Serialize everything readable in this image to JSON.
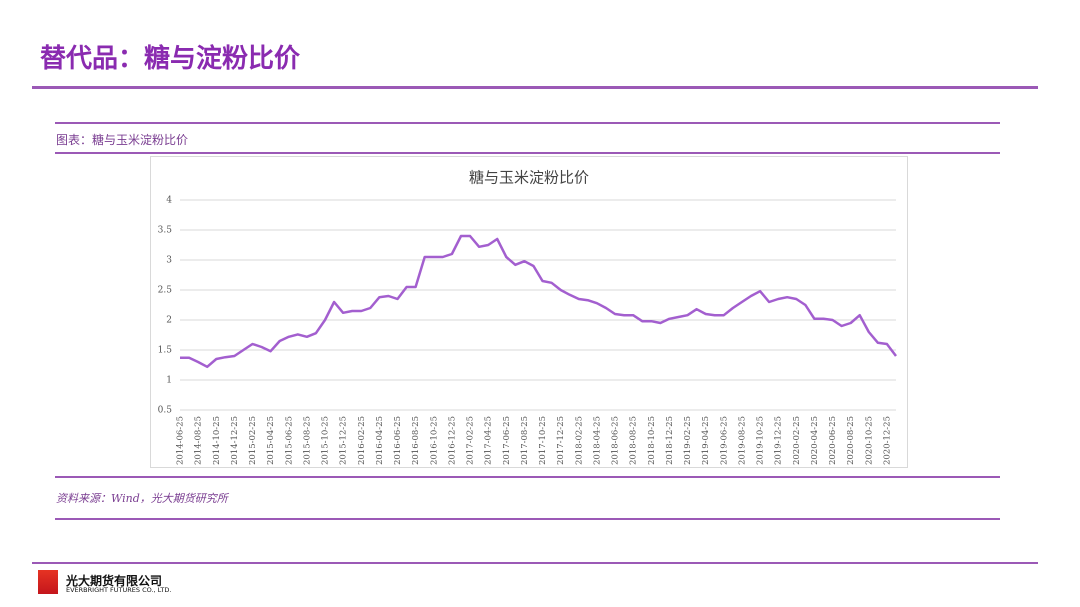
{
  "header": {
    "title": "替代品：糖与淀粉比价"
  },
  "caption": "图表：糖与玉米淀粉比价",
  "source": "资料来源：Wind，光大期货研究所",
  "footer": {
    "company": "光大期货有限公司",
    "company_en": "EVERBRIGHT FUTURES CO., LTD."
  },
  "chart_data": {
    "type": "line",
    "title": "糖与玉米淀粉比价",
    "categories": [
      "2014-06-25",
      null,
      "2014-08-25",
      null,
      "2014-10-25",
      null,
      "2014-12-25",
      null,
      "2015-02-25",
      null,
      "2015-04-25",
      null,
      "2015-06-25",
      null,
      "2015-08-25",
      null,
      "2015-10-25",
      null,
      "2015-12-25",
      null,
      "2016-02-25",
      null,
      "2016-04-25",
      null,
      "2016-06-25",
      null,
      "2016-08-25",
      null,
      "2016-10-25",
      null,
      "2016-12-25",
      null,
      "2017-02-25",
      null,
      "2017-04-25",
      null,
      "2017-06-25",
      null,
      "2017-08-25",
      null,
      "2017-10-25",
      null,
      "2017-12-25",
      null,
      "2018-02-25",
      null,
      "2018-04-25",
      null,
      "2018-06-25",
      null,
      "2018-08-25",
      null,
      "2018-10-25",
      null,
      "2018-12-25",
      null,
      "2019-02-25",
      null,
      "2019-04-25",
      null,
      "2019-06-25",
      null,
      "2019-08-25",
      null,
      "2019-10-25",
      null,
      "2019-12-25",
      null,
      "2020-02-25",
      null,
      "2020-04-25",
      null,
      "2020-06-25",
      null,
      "2020-08-25",
      null,
      "2020-10-25",
      null,
      "2020-12-25",
      null
    ],
    "series": [
      {
        "name": "糖与玉米淀粉比价",
        "color": "#a35fcf",
        "values": [
          1.37,
          1.37,
          1.3,
          1.22,
          1.35,
          1.38,
          1.4,
          1.5,
          1.6,
          1.55,
          1.48,
          1.65,
          1.72,
          1.76,
          1.72,
          1.78,
          2.0,
          2.3,
          2.12,
          2.15,
          2.15,
          2.2,
          2.38,
          2.4,
          2.35,
          2.55,
          2.55,
          3.05,
          3.05,
          3.05,
          3.1,
          3.4,
          3.4,
          3.22,
          3.25,
          3.35,
          3.05,
          2.92,
          2.98,
          2.9,
          2.65,
          2.62,
          2.5,
          2.42,
          2.35,
          2.33,
          2.28,
          2.2,
          2.1,
          2.08,
          2.08,
          1.98,
          1.98,
          1.95,
          2.02,
          2.05,
          2.08,
          2.18,
          2.1,
          2.08,
          2.08,
          2.2,
          2.3,
          2.4,
          2.48,
          2.3,
          2.35,
          2.38,
          2.35,
          2.25,
          2.02,
          2.02,
          2.0,
          1.9,
          1.95,
          2.08,
          1.8,
          1.62,
          1.6,
          1.4
        ]
      }
    ],
    "ylim": [
      0.5,
      4
    ],
    "yticks": [
      0.5,
      1,
      1.5,
      2,
      2.5,
      3,
      3.5,
      4
    ],
    "grid": true
  }
}
